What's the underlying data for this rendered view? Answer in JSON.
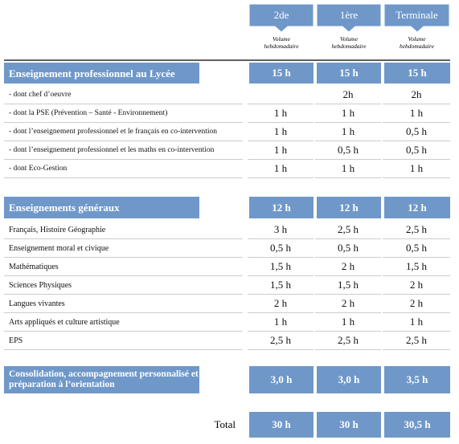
{
  "columns": [
    {
      "label": "2de",
      "sub": "Volume hebdomadaire"
    },
    {
      "label": "1ère",
      "sub": "Volume hebdomadaire"
    },
    {
      "label": "Terminale",
      "sub": "Volume hebdomadaire"
    }
  ],
  "sections": [
    {
      "title": "Enseignement professionnel au Lycée",
      "values": [
        "15 h",
        "15 h",
        "15 h"
      ],
      "rows": [
        {
          "label": "- dont chef d’oeuvre",
          "values": [
            null,
            "2h",
            "2h"
          ]
        },
        {
          "label": "- dont la PSE (Prévention – Santé - Environnement)",
          "values": [
            "1 h",
            "1 h",
            "1 h"
          ]
        },
        {
          "label": "- dont l’enseignement professionnel et le français en  co-intervention",
          "values": [
            "1 h",
            "1 h",
            "0,5 h"
          ]
        },
        {
          "label": "- dont l’enseignement professionnel et les maths en  co-intervention",
          "values": [
            "1 h",
            "0,5 h",
            "0,5 h"
          ]
        },
        {
          "label": "- dont Eco-Gestion",
          "values": [
            "1 h",
            "1 h",
            "1 h"
          ]
        }
      ]
    },
    {
      "title": "Enseignements généraux",
      "values": [
        "12 h",
        "12 h",
        "12 h"
      ],
      "rows": [
        {
          "label": "Français, Histoire Géographie",
          "values": [
            "3 h",
            "2,5 h",
            "2,5 h"
          ]
        },
        {
          "label": "Enseignement moral et civique",
          "values": [
            "0,5 h",
            "0,5 h",
            "0,5 h"
          ]
        },
        {
          "label": "Mathématiques",
          "values": [
            "1,5 h",
            "2 h",
            "1,5 h"
          ]
        },
        {
          "label": "Sciences Physiques",
          "values": [
            "1,5 h",
            "1,5 h",
            "2 h"
          ]
        },
        {
          "label": "Langues vivantes",
          "values": [
            "2 h",
            "2 h",
            "2 h"
          ]
        },
        {
          "label": "Arts appliqués et culture artistique",
          "values": [
            "1 h",
            "1 h",
            "1 h"
          ]
        },
        {
          "label": "EPS",
          "values": [
            "2,5 h",
            "2,5 h",
            "2,5 h"
          ]
        }
      ]
    },
    {
      "title": "Consolidation, accompagnement personnalisé et préparation à l’orientation",
      "values": [
        "3,0 h",
        "3,0 h",
        "3,5 h"
      ],
      "rows": []
    }
  ],
  "total": {
    "label": "Total",
    "values": [
      "30 h",
      "30 h",
      "30,5 h"
    ]
  }
}
